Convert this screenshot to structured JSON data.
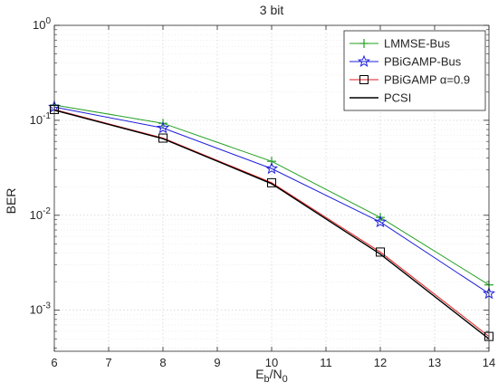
{
  "chart_data": {
    "type": "line",
    "title": "3 bit",
    "xlabel": "E_b/N_0",
    "ylabel": "BER",
    "xlim": [
      6,
      14
    ],
    "ylim": [
      0.00037,
      1
    ],
    "yscale": "log",
    "grid": true,
    "legend_position": "top-right",
    "x_ticks": [
      "6",
      "7",
      "8",
      "9",
      "10",
      "11",
      "12",
      "13",
      "14"
    ],
    "y_ticks": [
      {
        "value": 1,
        "label": "10^0"
      },
      {
        "value": 0.1,
        "label": "10^-1"
      },
      {
        "value": 0.01,
        "label": "10^-2"
      },
      {
        "value": 0.001,
        "label": "10^-3"
      }
    ],
    "series": [
      {
        "name": "LMMSE-Bus",
        "color": "#22a022",
        "marker": "plus",
        "x": [
          6,
          8,
          10,
          12,
          14
        ],
        "y": [
          0.145,
          0.093,
          0.037,
          0.0095,
          0.00185
        ]
      },
      {
        "name": "PBiGAMP-Bus",
        "color": "#1f1fdd",
        "marker": "star",
        "x": [
          6,
          8,
          10,
          12,
          14
        ],
        "y": [
          0.138,
          0.083,
          0.031,
          0.0085,
          0.0015
        ]
      },
      {
        "name": "PBiGAMP α=0.9",
        "color": "#e31a1c",
        "marker": "square",
        "x": [
          6,
          8,
          10,
          12,
          14
        ],
        "y": [
          0.13,
          0.065,
          0.022,
          0.0041,
          0.00053
        ]
      },
      {
        "name": "PCSI",
        "color": "#000000",
        "marker": "none",
        "x": [
          6,
          8,
          10,
          12,
          14
        ],
        "y": [
          0.128,
          0.064,
          0.0215,
          0.0039,
          0.0005
        ]
      }
    ]
  }
}
